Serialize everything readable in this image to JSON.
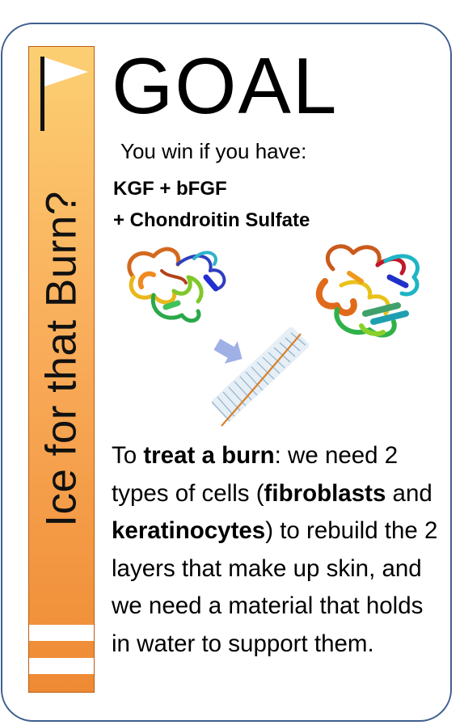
{
  "card": {
    "sidebar_title": "Ice for that Burn?",
    "heading": "GOAL",
    "win_line": "You win if you have:",
    "combo_line1": "KGF + bFGF",
    "combo_line2": "+ Chondroitin Sulfate"
  },
  "description": {
    "p1": "To ",
    "b1": "treat a burn",
    "p2": ": we need 2 types of cells (",
    "b2": "fibroblasts",
    "p3": " and ",
    "b3": "keratinocytes",
    "p4": ") to rebuild the 2 layers that make up skin, and we need a material that holds in water to support them."
  },
  "images": {
    "left": "kgf-protein-structure",
    "right": "bfgf-protein-structure",
    "center": "chondroitin-sulfate-structure"
  },
  "colors": {
    "sidebar_top": "#fccf73",
    "sidebar_bottom": "#ef8a34",
    "card_border": "#3f5f8f",
    "arrow": "#9fb0e6"
  }
}
